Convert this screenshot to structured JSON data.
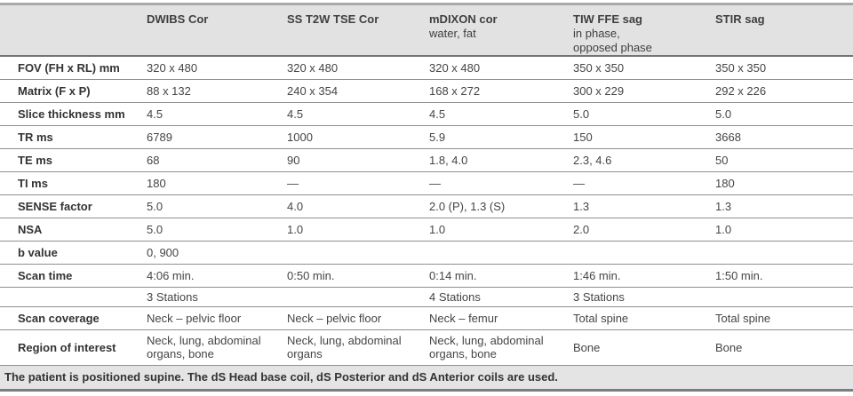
{
  "colors": {
    "header_bg": "#e2e2e2",
    "footnote_bg": "#e4e4e4",
    "divider": "#8f8f8f",
    "header_divider": "#757575",
    "outer_border": "#a9a9a9",
    "text": "#3f3f3f"
  },
  "table": {
    "columns": [
      {
        "label": "",
        "sublabel": ""
      },
      {
        "label": "DWIBS Cor",
        "sublabel": ""
      },
      {
        "label": "SS T2W TSE Cor",
        "sublabel": ""
      },
      {
        "label": "mDIXON cor",
        "sublabel": "water, fat"
      },
      {
        "label": "TIW FFE sag",
        "sublabel": "in phase,\nopposed phase"
      },
      {
        "label": "STIR sag",
        "sublabel": ""
      }
    ],
    "rows": [
      {
        "label": "FOV (FH x RL) mm",
        "values": [
          "320 x 480",
          "320 x 480",
          "320 x 480",
          "350 x 350",
          "350 x 350"
        ],
        "size": "normal"
      },
      {
        "label": "Matrix (F x P)",
        "values": [
          "88 x 132",
          "240 x 354",
          "168 x 272",
          "300 x 229",
          "292 x 226"
        ],
        "size": "normal"
      },
      {
        "label": "Slice thickness mm",
        "values": [
          "4.5",
          "4.5",
          "4.5",
          "5.0",
          "5.0"
        ],
        "size": "normal"
      },
      {
        "label": "TR ms",
        "values": [
          "6789",
          "1000",
          "5.9",
          "150",
          "3668"
        ],
        "size": "normal"
      },
      {
        "label": "TE ms",
        "values": [
          "68",
          "90",
          "1.8, 4.0",
          "2.3, 4.6",
          "50"
        ],
        "size": "normal"
      },
      {
        "label": "TI ms",
        "values": [
          "180",
          "—",
          "—",
          "—",
          "180"
        ],
        "size": "normal"
      },
      {
        "label": "SENSE factor",
        "values": [
          "5.0",
          "4.0",
          "2.0 (P), 1.3 (S)",
          "1.3",
          "1.3"
        ],
        "size": "normal"
      },
      {
        "label": "NSA",
        "values": [
          "5.0",
          "1.0",
          "1.0",
          "2.0",
          "1.0"
        ],
        "size": "normal"
      },
      {
        "label": "b value",
        "values": [
          "0, 900",
          "",
          "",
          "",
          ""
        ],
        "size": "normal"
      },
      {
        "label": "Scan time",
        "values": [
          "4:06 min.",
          "0:50 min.",
          "0:14 min.",
          "1:46 min.",
          "1:50 min."
        ],
        "size": "normal"
      },
      {
        "label": "",
        "values": [
          "3 Stations",
          "",
          "4 Stations",
          "3 Stations",
          ""
        ],
        "size": "short"
      },
      {
        "label": "Scan coverage",
        "values": [
          "Neck – pelvic floor",
          "Neck – pelvic floor",
          "Neck – femur",
          "Total spine",
          "Total spine"
        ],
        "size": "normal"
      },
      {
        "label": "Region of interest",
        "values": [
          "Neck, lung, abdominal organs, bone",
          "Neck, lung, abdominal organs",
          "Neck, lung, abdominal organs, bone",
          "Bone",
          "Bone"
        ],
        "size": "tall"
      }
    ],
    "footnote": "The patient is positioned supine. The dS Head base coil, dS Posterior and dS Anterior coils are used."
  }
}
